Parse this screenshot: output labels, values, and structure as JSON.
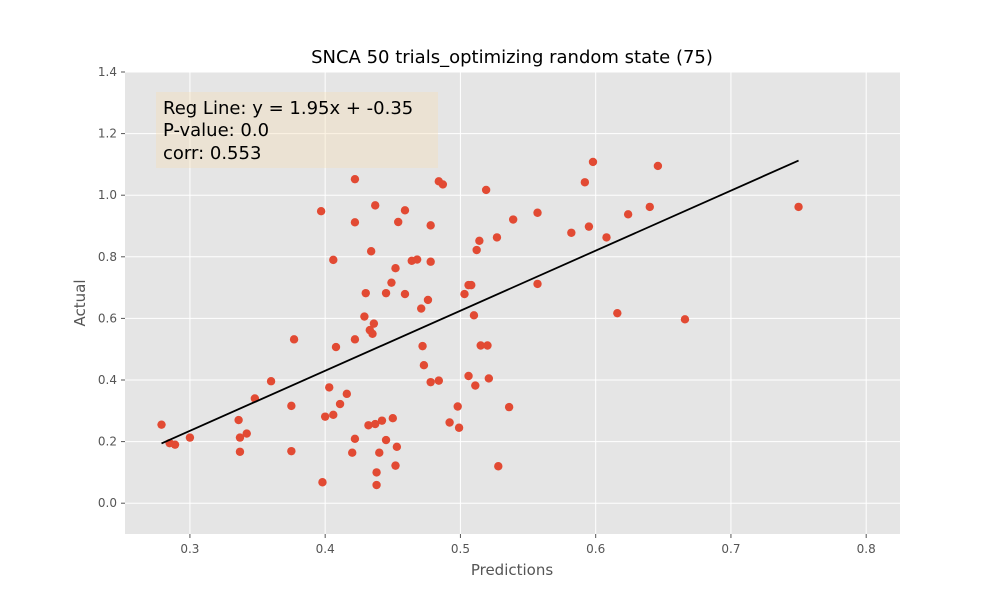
{
  "chart_data": {
    "type": "scatter",
    "title": "SNCA 50 trials_optimizing random state (75)",
    "xlabel": "Predictions",
    "ylabel": "Actual",
    "xlim": [
      0.252,
      0.825
    ],
    "ylim": [
      -0.1,
      1.4
    ],
    "xticks": [
      0.3,
      0.4,
      0.5,
      0.6,
      0.7,
      0.8
    ],
    "xtick_labels": [
      "0.3",
      "0.4",
      "0.5",
      "0.6",
      "0.7",
      "0.8"
    ],
    "yticks": [
      0.0,
      0.2,
      0.4,
      0.6,
      0.8,
      1.0,
      1.2,
      1.4
    ],
    "ytick_labels": [
      "0.0",
      "0.2",
      "0.4",
      "0.6",
      "0.8",
      "1.0",
      "1.2",
      "1.4"
    ],
    "grid": true,
    "annotation": {
      "lines": [
        "Reg Line: y = 1.95x + -0.35",
        "P-value: 0.0",
        "corr: 0.553"
      ],
      "placement": "top-left"
    },
    "regression_line": {
      "slope": 1.95,
      "intercept": -0.35,
      "x_range": [
        0.279,
        0.75
      ],
      "color": "#000000"
    },
    "series": [
      {
        "color": "#E24A33",
        "points": [
          [
            0.279,
            0.255
          ],
          [
            0.285,
            0.195
          ],
          [
            0.289,
            0.19
          ],
          [
            0.3,
            0.213
          ],
          [
            0.336,
            0.27
          ],
          [
            0.337,
            0.213
          ],
          [
            0.337,
            0.167
          ],
          [
            0.342,
            0.226
          ],
          [
            0.348,
            0.34
          ],
          [
            0.36,
            0.396
          ],
          [
            0.375,
            0.316
          ],
          [
            0.375,
            0.169
          ],
          [
            0.377,
            0.532
          ],
          [
            0.397,
            0.948
          ],
          [
            0.398,
            0.068
          ],
          [
            0.4,
            0.281
          ],
          [
            0.403,
            0.376
          ],
          [
            0.406,
            0.79
          ],
          [
            0.406,
            0.287
          ],
          [
            0.408,
            0.507
          ],
          [
            0.411,
            0.322
          ],
          [
            0.416,
            0.355
          ],
          [
            0.42,
            0.164
          ],
          [
            0.422,
            1.052
          ],
          [
            0.422,
            0.912
          ],
          [
            0.422,
            0.532
          ],
          [
            0.422,
            0.209
          ],
          [
            0.429,
            0.606
          ],
          [
            0.43,
            0.682
          ],
          [
            0.432,
            0.253
          ],
          [
            0.433,
            0.562
          ],
          [
            0.434,
            0.818
          ],
          [
            0.435,
            0.55
          ],
          [
            0.436,
            0.583
          ],
          [
            0.437,
            0.967
          ],
          [
            0.437,
            0.257
          ],
          [
            0.438,
            0.059
          ],
          [
            0.438,
            0.1
          ],
          [
            0.44,
            0.164
          ],
          [
            0.442,
            0.268
          ],
          [
            0.445,
            0.682
          ],
          [
            0.445,
            0.205
          ],
          [
            0.449,
            0.716
          ],
          [
            0.45,
            0.276
          ],
          [
            0.452,
            0.763
          ],
          [
            0.452,
            0.122
          ],
          [
            0.453,
            0.183
          ],
          [
            0.454,
            0.913
          ],
          [
            0.459,
            0.951
          ],
          [
            0.459,
            0.679
          ],
          [
            0.464,
            0.787
          ],
          [
            0.468,
            0.791
          ],
          [
            0.471,
            0.632
          ],
          [
            0.472,
            0.51
          ],
          [
            0.473,
            0.448
          ],
          [
            0.476,
            0.66
          ],
          [
            0.478,
            0.784
          ],
          [
            0.478,
            0.902
          ],
          [
            0.478,
            0.393
          ],
          [
            0.484,
            1.045
          ],
          [
            0.484,
            0.398
          ],
          [
            0.487,
            1.035
          ],
          [
            0.492,
            0.262
          ],
          [
            0.498,
            0.314
          ],
          [
            0.499,
            0.245
          ],
          [
            0.503,
            0.679
          ],
          [
            0.506,
            0.708
          ],
          [
            0.506,
            0.413
          ],
          [
            0.508,
            0.708
          ],
          [
            0.51,
            0.61
          ],
          [
            0.511,
            0.382
          ],
          [
            0.512,
            0.822
          ],
          [
            0.514,
            0.852
          ],
          [
            0.515,
            0.512
          ],
          [
            0.519,
            1.017
          ],
          [
            0.52,
            0.512
          ],
          [
            0.521,
            0.405
          ],
          [
            0.527,
            0.863
          ],
          [
            0.528,
            0.12
          ],
          [
            0.536,
            0.312
          ],
          [
            0.539,
            0.921
          ],
          [
            0.557,
            0.943
          ],
          [
            0.557,
            0.712
          ],
          [
            0.582,
            0.878
          ],
          [
            0.592,
            1.042
          ],
          [
            0.595,
            0.898
          ],
          [
            0.598,
            1.108
          ],
          [
            0.608,
            0.863
          ],
          [
            0.616,
            0.617
          ],
          [
            0.624,
            0.938
          ],
          [
            0.64,
            0.962
          ],
          [
            0.646,
            1.095
          ],
          [
            0.666,
            0.597
          ],
          [
            0.75,
            0.962
          ]
        ]
      }
    ]
  },
  "colors": {
    "plot_background": "#E5E5E5",
    "grid": "#FFFFFF",
    "point": "#E24A33",
    "line": "#000000",
    "annotation_box": "#F5DEB3"
  }
}
